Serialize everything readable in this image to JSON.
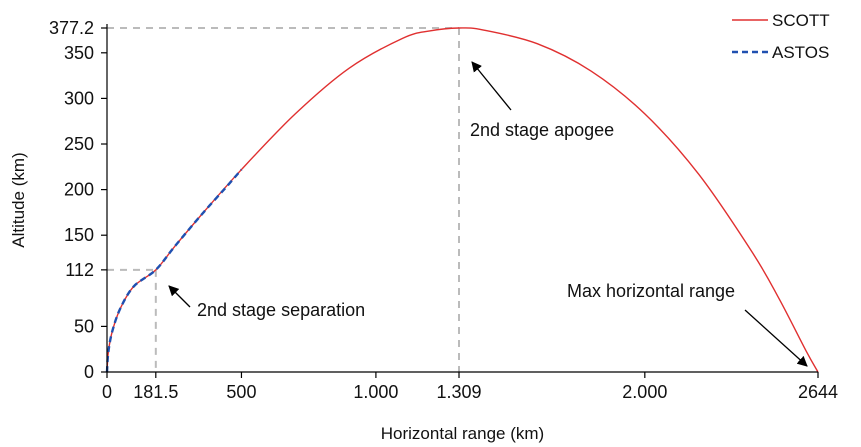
{
  "chart_data": {
    "type": "line",
    "xlabel": "Horizontal range (km)",
    "ylabel": "Altitude (km)",
    "xlim": [
      0,
      2644
    ],
    "ylim": [
      0,
      377.2
    ],
    "x_ticks": [
      {
        "value": 0,
        "label": "0"
      },
      {
        "value": 181.5,
        "label": "181.5"
      },
      {
        "value": 500,
        "label": "500"
      },
      {
        "value": 1000,
        "label": "1.000"
      },
      {
        "value": 1309,
        "label": "1.309"
      },
      {
        "value": 2000,
        "label": "2.000"
      },
      {
        "value": 2644,
        "label": "2644"
      }
    ],
    "y_ticks": [
      {
        "value": 0,
        "label": "0"
      },
      {
        "value": 50,
        "label": "50"
      },
      {
        "value": 112,
        "label": "112"
      },
      {
        "value": 150,
        "label": "150"
      },
      {
        "value": 200,
        "label": "200"
      },
      {
        "value": 250,
        "label": "250"
      },
      {
        "value": 300,
        "label": "300"
      },
      {
        "value": 350,
        "label": "350"
      },
      {
        "value": 377.2,
        "label": "377.2"
      }
    ],
    "grid": false,
    "legend": {
      "position": "top-right",
      "entries": [
        {
          "name": "SCOTT",
          "color": "#e03030",
          "style": "solid"
        },
        {
          "name": "ASTOS",
          "color": "#2050b0",
          "style": "dashed"
        }
      ]
    },
    "series": [
      {
        "name": "SCOTT",
        "color": "#e03030",
        "x": [
          0,
          5,
          20,
          50,
          100,
          181.5,
          250,
          350,
          500,
          700,
          900,
          1100,
          1200,
          1309,
          1400,
          1600,
          1800,
          2000,
          2200,
          2400,
          2500,
          2600,
          2644
        ],
        "y": [
          0,
          22,
          45,
          70,
          94,
          112,
          137,
          172,
          222,
          283,
          333,
          366,
          374,
          377.2,
          375,
          360,
          330,
          283,
          217,
          131,
          80,
          23,
          0
        ]
      },
      {
        "name": "ASTOS",
        "color": "#2050b0",
        "x": [
          0,
          5,
          20,
          50,
          100,
          181.5,
          250,
          350,
          450,
          500
        ],
        "y": [
          0,
          22,
          45,
          70,
          94,
          112,
          137,
          172,
          205,
          222
        ]
      }
    ],
    "guides": [
      {
        "x": 181.5,
        "y": 112
      },
      {
        "x": 1309,
        "y": 377.2
      }
    ],
    "annotations": [
      {
        "text": "2nd stage separation",
        "x": 181.5,
        "y": 112
      },
      {
        "text": "2nd stage apogee",
        "x": 1309,
        "y": 377.2
      },
      {
        "text": "Max horizontal range",
        "x": 2644,
        "y": 0
      }
    ]
  }
}
